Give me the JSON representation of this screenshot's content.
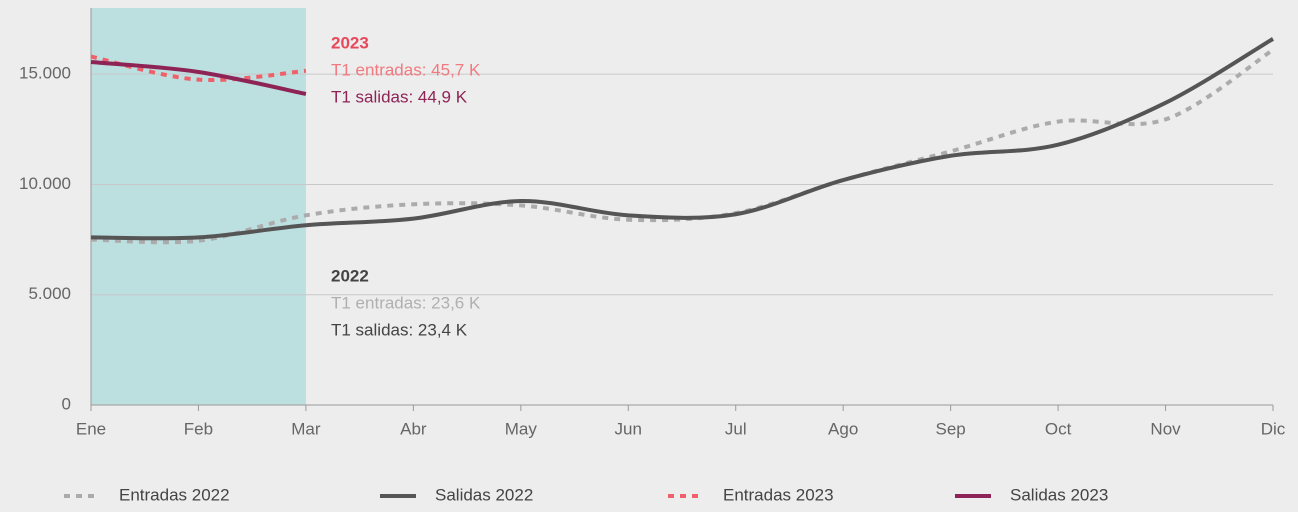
{
  "chart_data": {
    "type": "line",
    "categories": [
      "Ene",
      "Feb",
      "Mar",
      "Abr",
      "May",
      "Jun",
      "Jul",
      "Ago",
      "Sep",
      "Oct",
      "Nov",
      "Dic"
    ],
    "series": [
      {
        "name": "Entradas 2022",
        "color": "#ababab",
        "dashed": true,
        "values": [
          7500,
          7450,
          8600,
          9100,
          9050,
          8400,
          8700,
          10200,
          11500,
          12850,
          12950,
          16100
        ]
      },
      {
        "name": "Salidas 2022",
        "color": "#555555",
        "dashed": false,
        "values": [
          7600,
          7600,
          8150,
          8450,
          9250,
          8600,
          8650,
          10200,
          11300,
          11800,
          13700,
          16600
        ]
      },
      {
        "name": "Entradas 2023",
        "color": "#f0606a",
        "dashed": true,
        "values": [
          15800,
          14750,
          15150,
          null,
          null,
          null,
          null,
          null,
          null,
          null,
          null,
          null
        ]
      },
      {
        "name": "Salidas 2023",
        "color": "#8e2456",
        "dashed": false,
        "values": [
          15550,
          15100,
          14100,
          null,
          null,
          null,
          null,
          null,
          null,
          null,
          null,
          null
        ]
      }
    ],
    "annotations": [
      {
        "title": "2023",
        "title_color": "#e8485a",
        "lines": [
          {
            "text": "T1 entradas: 45,7 K",
            "color": "#f07a80"
          },
          {
            "text": "T1 salidas: 44,9 K",
            "color": "#8e2456"
          }
        ]
      },
      {
        "title": "2022",
        "title_color": "#444444",
        "lines": [
          {
            "text": "T1 entradas: 23,6 K",
            "color": "#b0b0b0"
          },
          {
            "text": "T1 salidas: 23,4 K",
            "color": "#444444"
          }
        ]
      }
    ],
    "ylim": [
      0,
      18000
    ],
    "yticks": [
      0,
      {
        "value": 5000,
        "label": "5.000"
      },
      {
        "value": 10000,
        "label": "10.000"
      },
      {
        "value": 15000,
        "label": "15.000"
      }
    ],
    "grid": true,
    "legend": "bottom"
  }
}
